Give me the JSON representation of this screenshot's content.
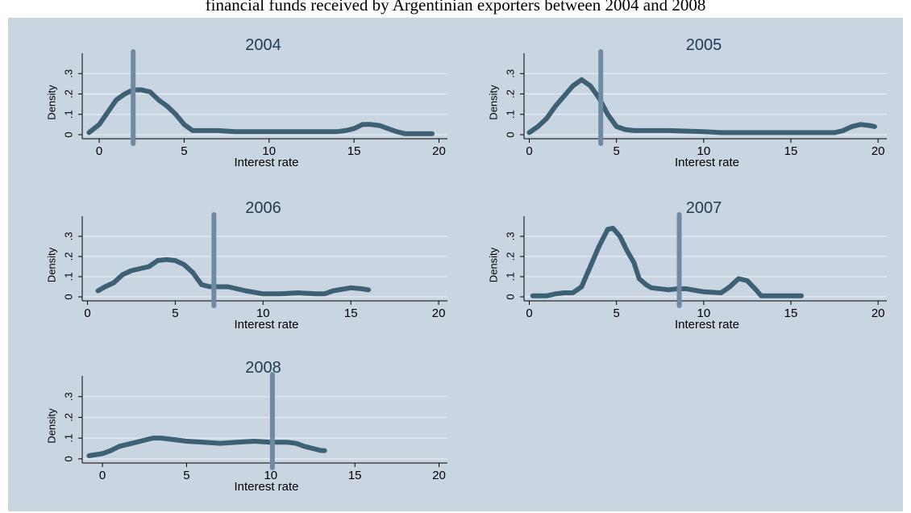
{
  "title": "financial funds received by Argentinian exporters between 2004 and 2008",
  "colors": {
    "background": "#c9d5e0",
    "line": "#3d6075",
    "vline": "#6f8ba3",
    "grid": "#eef2f6",
    "title": "#1f3b55"
  },
  "chart_data": [
    {
      "type": "line",
      "title": "2004",
      "xlabel": "Interest rate",
      "ylabel": "Density",
      "xlim": [
        -1,
        20.5
      ],
      "ylim": [
        -0.02,
        0.4
      ],
      "x_ticks": [
        0,
        5,
        10,
        15,
        20
      ],
      "y_ticks": [
        0,
        0.1,
        0.2,
        0.3
      ],
      "y_tick_labels": [
        "0",
        ".1",
        ".2",
        ".3"
      ],
      "grid": true,
      "vline": 2.0,
      "series": [
        {
          "points": [
            [
              -0.6,
              0.01
            ],
            [
              0,
              0.05
            ],
            [
              0.5,
              0.11
            ],
            [
              1,
              0.17
            ],
            [
              1.5,
              0.2
            ],
            [
              2,
              0.22
            ],
            [
              2.5,
              0.22
            ],
            [
              3,
              0.21
            ],
            [
              3.5,
              0.17
            ],
            [
              4,
              0.14
            ],
            [
              4.5,
              0.1
            ],
            [
              5,
              0.05
            ],
            [
              5.5,
              0.02
            ],
            [
              6,
              0.02
            ],
            [
              7,
              0.02
            ],
            [
              8,
              0.015
            ],
            [
              10,
              0.015
            ],
            [
              12,
              0.015
            ],
            [
              14,
              0.015
            ],
            [
              14.5,
              0.02
            ],
            [
              15,
              0.03
            ],
            [
              15.5,
              0.05
            ],
            [
              16,
              0.05
            ],
            [
              16.5,
              0.045
            ],
            [
              17,
              0.03
            ],
            [
              17.5,
              0.015
            ],
            [
              18,
              0.005
            ],
            [
              19,
              0.005
            ],
            [
              19.6,
              0.005
            ]
          ]
        }
      ]
    },
    {
      "type": "line",
      "title": "2005",
      "xlabel": "Interest rate",
      "ylabel": "Density",
      "xlim": [
        -0.3,
        20.5
      ],
      "ylim": [
        -0.02,
        0.4
      ],
      "x_ticks": [
        0,
        5,
        10,
        15,
        20
      ],
      "y_ticks": [
        0,
        0.1,
        0.2,
        0.3
      ],
      "y_tick_labels": [
        "0",
        ".1",
        ".2",
        ".3"
      ],
      "grid": true,
      "vline": 4.1,
      "series": [
        {
          "points": [
            [
              0,
              0.01
            ],
            [
              0.5,
              0.04
            ],
            [
              1,
              0.08
            ],
            [
              1.5,
              0.14
            ],
            [
              2,
              0.19
            ],
            [
              2.5,
              0.24
            ],
            [
              3,
              0.27
            ],
            [
              3.5,
              0.24
            ],
            [
              4,
              0.18
            ],
            [
              4.5,
              0.1
            ],
            [
              5,
              0.04
            ],
            [
              5.5,
              0.025
            ],
            [
              6,
              0.02
            ],
            [
              8,
              0.02
            ],
            [
              10,
              0.015
            ],
            [
              11,
              0.01
            ],
            [
              12,
              0.01
            ],
            [
              14,
              0.01
            ],
            [
              16,
              0.01
            ],
            [
              17.5,
              0.01
            ],
            [
              18,
              0.02
            ],
            [
              18.5,
              0.04
            ],
            [
              19,
              0.05
            ],
            [
              19.5,
              0.045
            ],
            [
              19.8,
              0.04
            ]
          ]
        }
      ]
    },
    {
      "type": "line",
      "title": "2006",
      "xlabel": "Interest rate",
      "ylabel": "Density",
      "xlim": [
        -0.3,
        20.5
      ],
      "ylim": [
        -0.02,
        0.4
      ],
      "x_ticks": [
        0,
        5,
        10,
        15,
        20
      ],
      "y_ticks": [
        0,
        0.1,
        0.2,
        0.3
      ],
      "y_tick_labels": [
        "0",
        ".1",
        ".2",
        ".3"
      ],
      "grid": true,
      "vline": 7.2,
      "series": [
        {
          "points": [
            [
              0.6,
              0.03
            ],
            [
              1,
              0.05
            ],
            [
              1.5,
              0.07
            ],
            [
              2,
              0.11
            ],
            [
              2.5,
              0.13
            ],
            [
              3,
              0.14
            ],
            [
              3.5,
              0.15
            ],
            [
              4,
              0.18
            ],
            [
              4.5,
              0.185
            ],
            [
              5,
              0.18
            ],
            [
              5.5,
              0.16
            ],
            [
              6,
              0.12
            ],
            [
              6.5,
              0.06
            ],
            [
              7,
              0.05
            ],
            [
              8,
              0.05
            ],
            [
              8.5,
              0.04
            ],
            [
              9,
              0.03
            ],
            [
              10,
              0.015
            ],
            [
              11,
              0.015
            ],
            [
              12,
              0.02
            ],
            [
              13,
              0.015
            ],
            [
              13.5,
              0.015
            ],
            [
              14,
              0.03
            ],
            [
              15,
              0.045
            ],
            [
              15.6,
              0.04
            ],
            [
              16,
              0.035
            ]
          ]
        }
      ]
    },
    {
      "type": "line",
      "title": "2007",
      "xlabel": "Interest rate",
      "ylabel": "Density",
      "xlim": [
        -0.3,
        20.5
      ],
      "ylim": [
        -0.02,
        0.4
      ],
      "x_ticks": [
        0,
        5,
        10,
        15,
        20
      ],
      "y_ticks": [
        0,
        0.1,
        0.2,
        0.3
      ],
      "y_tick_labels": [
        "0",
        ".1",
        ".2",
        ".3"
      ],
      "grid": true,
      "vline": 8.6,
      "series": [
        {
          "points": [
            [
              0.2,
              0.005
            ],
            [
              1,
              0.005
            ],
            [
              1.5,
              0.015
            ],
            [
              2,
              0.02
            ],
            [
              2.5,
              0.02
            ],
            [
              3,
              0.05
            ],
            [
              3.5,
              0.15
            ],
            [
              4,
              0.25
            ],
            [
              4.5,
              0.335
            ],
            [
              4.8,
              0.34
            ],
            [
              5.2,
              0.3
            ],
            [
              5.6,
              0.23
            ],
            [
              6,
              0.17
            ],
            [
              6.3,
              0.09
            ],
            [
              6.7,
              0.06
            ],
            [
              7,
              0.045
            ],
            [
              8,
              0.035
            ],
            [
              8.5,
              0.04
            ],
            [
              9,
              0.04
            ],
            [
              10,
              0.025
            ],
            [
              11,
              0.02
            ],
            [
              11.5,
              0.05
            ],
            [
              12,
              0.09
            ],
            [
              12.5,
              0.08
            ],
            [
              13,
              0.035
            ],
            [
              13.3,
              0.005
            ],
            [
              14,
              0.005
            ],
            [
              15,
              0.005
            ],
            [
              15.6,
              0.005
            ]
          ]
        }
      ]
    },
    {
      "type": "line",
      "title": "2008",
      "xlabel": "Interest rate",
      "ylabel": "Density",
      "xlim": [
        -1.2,
        20.5
      ],
      "ylim": [
        -0.02,
        0.4
      ],
      "x_ticks": [
        0,
        5,
        10,
        15,
        20
      ],
      "y_ticks": [
        0,
        0.1,
        0.2,
        0.3
      ],
      "y_tick_labels": [
        "0",
        ".1",
        ".2",
        ".3"
      ],
      "grid": true,
      "vline": 10.1,
      "series": [
        {
          "points": [
            [
              -0.8,
              0.015
            ],
            [
              0,
              0.025
            ],
            [
              0.5,
              0.04
            ],
            [
              1,
              0.06
            ],
            [
              2,
              0.08
            ],
            [
              3,
              0.1
            ],
            [
              3.5,
              0.1
            ],
            [
              4,
              0.095
            ],
            [
              5,
              0.085
            ],
            [
              6,
              0.08
            ],
            [
              7,
              0.075
            ],
            [
              8,
              0.08
            ],
            [
              9,
              0.085
            ],
            [
              10,
              0.08
            ],
            [
              10.5,
              0.08
            ],
            [
              11,
              0.08
            ],
            [
              11.5,
              0.075
            ],
            [
              12,
              0.06
            ],
            [
              12.5,
              0.05
            ],
            [
              13,
              0.04
            ],
            [
              13.2,
              0.04
            ]
          ]
        }
      ]
    }
  ]
}
